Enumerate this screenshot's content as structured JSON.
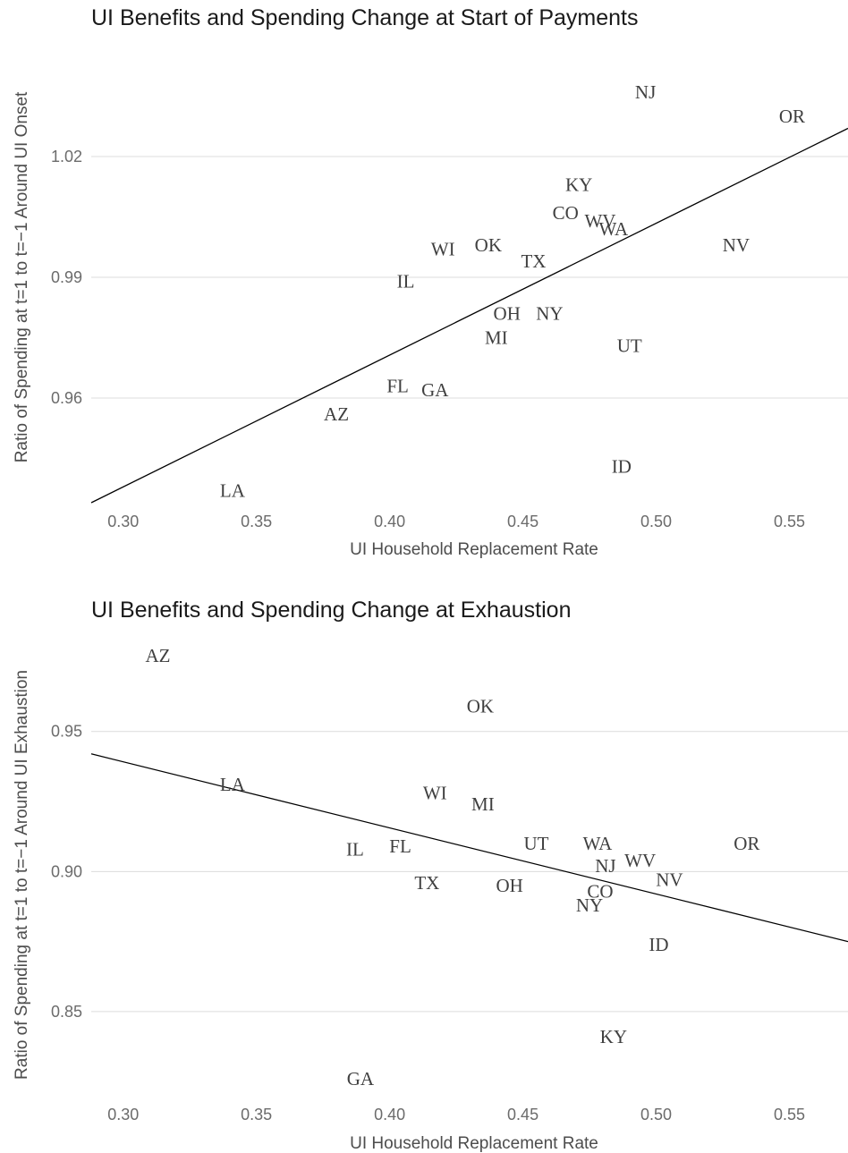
{
  "chart_data": [
    {
      "type": "scatter",
      "title": "UI Benefits and Spending Change at Start of Payments",
      "xlabel": "UI Household Replacement Rate",
      "ylabel": "Ratio of Spending at t=1 to t=−1 Around UI Onset",
      "xlim": [
        0.288,
        0.572
      ],
      "ylim": [
        0.934,
        1.05
      ],
      "xticks": [
        0.3,
        0.35,
        0.4,
        0.45,
        0.5,
        0.55
      ],
      "xtick_labels": [
        "0.30",
        "0.35",
        "0.40",
        "0.45",
        "0.50",
        "0.55"
      ],
      "yticks": [
        0.96,
        0.99,
        1.02
      ],
      "ytick_labels": [
        "0.96",
        "0.99",
        "1.02"
      ],
      "grid": "horizontal",
      "fit_line": {
        "x": [
          0.288,
          0.572
        ],
        "y": [
          0.934,
          1.027
        ]
      },
      "points": [
        {
          "label": "NJ",
          "x": 0.496,
          "y": 1.036
        },
        {
          "label": "OR",
          "x": 0.551,
          "y": 1.03
        },
        {
          "label": "KY",
          "x": 0.471,
          "y": 1.013
        },
        {
          "label": "CO",
          "x": 0.466,
          "y": 1.006
        },
        {
          "label": "WV",
          "x": 0.479,
          "y": 1.004
        },
        {
          "label": "WA",
          "x": 0.484,
          "y": 1.002
        },
        {
          "label": "NV",
          "x": 0.53,
          "y": 0.998
        },
        {
          "label": "WI",
          "x": 0.42,
          "y": 0.997
        },
        {
          "label": "OK",
          "x": 0.437,
          "y": 0.998
        },
        {
          "label": "TX",
          "x": 0.454,
          "y": 0.994
        },
        {
          "label": "IL",
          "x": 0.406,
          "y": 0.989
        },
        {
          "label": "OH",
          "x": 0.444,
          "y": 0.981
        },
        {
          "label": "NY",
          "x": 0.46,
          "y": 0.981
        },
        {
          "label": "MI",
          "x": 0.44,
          "y": 0.975
        },
        {
          "label": "UT",
          "x": 0.49,
          "y": 0.973
        },
        {
          "label": "FL",
          "x": 0.403,
          "y": 0.963
        },
        {
          "label": "GA",
          "x": 0.417,
          "y": 0.962
        },
        {
          "label": "AZ",
          "x": 0.38,
          "y": 0.956
        },
        {
          "label": "ID",
          "x": 0.487,
          "y": 0.943
        },
        {
          "label": "LA",
          "x": 0.341,
          "y": 0.937
        }
      ]
    },
    {
      "type": "scatter",
      "title": "UI Benefits and Spending Change at Exhaustion",
      "xlabel": "UI Household Replacement Rate",
      "ylabel": "Ratio of Spending at t=1 to t=−1 Around UI Exhaustion",
      "xlim": [
        0.288,
        0.572
      ],
      "ylim": [
        0.819,
        0.986
      ],
      "xticks": [
        0.3,
        0.35,
        0.4,
        0.45,
        0.5,
        0.55
      ],
      "xtick_labels": [
        "0.30",
        "0.35",
        "0.40",
        "0.45",
        "0.50",
        "0.55"
      ],
      "yticks": [
        0.85,
        0.9,
        0.95
      ],
      "ytick_labels": [
        "0.85",
        "0.90",
        "0.95"
      ],
      "grid": "horizontal",
      "fit_line": {
        "x": [
          0.288,
          0.572
        ],
        "y": [
          0.942,
          0.875
        ]
      },
      "points": [
        {
          "label": "AZ",
          "x": 0.313,
          "y": 0.977
        },
        {
          "label": "OK",
          "x": 0.434,
          "y": 0.959
        },
        {
          "label": "LA",
          "x": 0.341,
          "y": 0.931
        },
        {
          "label": "WI",
          "x": 0.417,
          "y": 0.928
        },
        {
          "label": "MI",
          "x": 0.435,
          "y": 0.924
        },
        {
          "label": "IL",
          "x": 0.387,
          "y": 0.908
        },
        {
          "label": "FL",
          "x": 0.404,
          "y": 0.909
        },
        {
          "label": "UT",
          "x": 0.455,
          "y": 0.91
        },
        {
          "label": "WA",
          "x": 0.478,
          "y": 0.91
        },
        {
          "label": "OR",
          "x": 0.534,
          "y": 0.91
        },
        {
          "label": "NJ",
          "x": 0.481,
          "y": 0.902
        },
        {
          "label": "WV",
          "x": 0.494,
          "y": 0.904
        },
        {
          "label": "NV",
          "x": 0.505,
          "y": 0.897
        },
        {
          "label": "TX",
          "x": 0.414,
          "y": 0.896
        },
        {
          "label": "OH",
          "x": 0.445,
          "y": 0.895
        },
        {
          "label": "CO",
          "x": 0.479,
          "y": 0.893
        },
        {
          "label": "NY",
          "x": 0.475,
          "y": 0.888
        },
        {
          "label": "ID",
          "x": 0.501,
          "y": 0.874
        },
        {
          "label": "KY",
          "x": 0.484,
          "y": 0.841
        },
        {
          "label": "GA",
          "x": 0.389,
          "y": 0.826
        }
      ]
    }
  ]
}
